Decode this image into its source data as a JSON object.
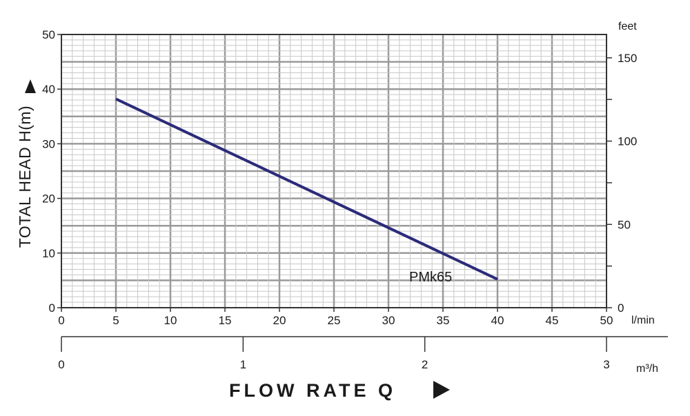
{
  "chart_data": {
    "type": "line",
    "ylabel": "TOTAL HEAD H(m)",
    "xlabel": "FLOW RATE Q",
    "x_unit": "l/min",
    "x2_unit": "m³/h",
    "y2_unit": "feet",
    "xlim": [
      0,
      50
    ],
    "ylim": [
      0,
      50
    ],
    "x2lim": [
      0,
      3
    ],
    "y2lim": [
      0,
      164
    ],
    "x_ticks": [
      "0",
      "5",
      "10",
      "15",
      "20",
      "25",
      "30",
      "35",
      "40",
      "45",
      "50"
    ],
    "y_ticks": [
      "0",
      "10",
      "20",
      "30",
      "40",
      "50"
    ],
    "x2_ticks": [
      "0",
      "1",
      "2",
      "3"
    ],
    "y2_ticks": [
      "0",
      "50",
      "100",
      "150"
    ],
    "grid": true,
    "series": [
      {
        "name": "PMk65",
        "x": [
          5,
          40
        ],
        "y": [
          38.2,
          5.2
        ],
        "color": "#2b2a7a"
      }
    ]
  }
}
